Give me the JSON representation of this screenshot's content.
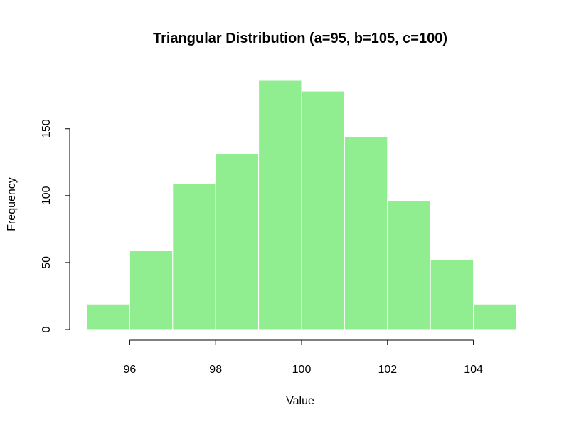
{
  "chart_data": {
    "type": "bar",
    "title": "Triangular Distribution (a=95, b=105, c=100)",
    "xlabel": "Value",
    "ylabel": "Frequency",
    "bin_edges": [
      95,
      96,
      97,
      98,
      99,
      100,
      101,
      102,
      103,
      104,
      105
    ],
    "values": [
      19,
      59,
      109,
      131,
      186,
      178,
      144,
      96,
      52,
      19
    ],
    "xlim": [
      95,
      105
    ],
    "x_ticks": [
      96,
      98,
      100,
      102,
      104
    ],
    "ylim": [
      0,
      186
    ],
    "y_ticks": [
      0,
      50,
      100,
      150
    ],
    "bar_color": "#90EE90",
    "bar_border_color": "#ffffff",
    "grid": false
  }
}
